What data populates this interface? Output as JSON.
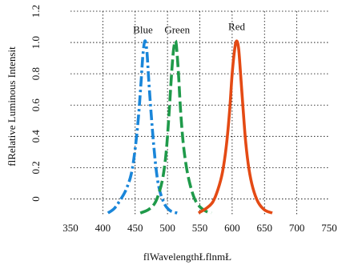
{
  "chart_data": {
    "type": "line",
    "title": "",
    "xlabel": "flWavelengthŁflnmŁ",
    "ylabel": "flRelative Luminous Intensit",
    "xlim": [
      350,
      750
    ],
    "ylim": [
      -0.1,
      1.2
    ],
    "x_ticks": [
      "350",
      "400",
      "450",
      "500",
      "550",
      "600",
      "650",
      "700",
      "750"
    ],
    "y_ticks": [
      "0",
      "0.2",
      "0.4",
      "0.6",
      "0.8",
      "1.0",
      "1.2"
    ],
    "grid": true,
    "series": [
      {
        "name": "Blue",
        "color": "#1a86d9",
        "line_style": "dash-dot",
        "x": [
          408,
          418,
          428,
          436,
          444,
          450,
          455,
          459,
          462,
          465,
          468,
          471,
          475,
          479,
          483,
          487,
          492,
          498,
          506,
          515
        ],
        "y": [
          -0.09,
          -0.06,
          0.0,
          0.06,
          0.16,
          0.32,
          0.52,
          0.74,
          0.92,
          1.01,
          0.95,
          0.76,
          0.53,
          0.33,
          0.17,
          0.07,
          0.0,
          -0.05,
          -0.08,
          -0.09
        ]
      },
      {
        "name": "Green",
        "color": "#1f9a4a",
        "line_style": "dashed",
        "x": [
          458,
          470,
          480,
          487,
          493,
          498,
          502,
          506,
          509,
          512,
          514,
          517,
          520,
          524,
          529,
          535,
          542,
          550,
          560,
          568
        ],
        "y": [
          -0.09,
          -0.07,
          -0.03,
          0.04,
          0.14,
          0.3,
          0.52,
          0.78,
          0.94,
          1.01,
          0.97,
          0.8,
          0.58,
          0.37,
          0.21,
          0.09,
          0.0,
          -0.05,
          -0.08,
          -0.09
        ]
      },
      {
        "name": "Red",
        "color": "#e44a14",
        "line_style": "solid",
        "x": [
          548,
          560,
          570,
          578,
          585,
          591,
          596,
          600,
          604,
          607,
          610,
          613,
          617,
          621,
          626,
          632,
          640,
          650,
          662
        ],
        "y": [
          -0.09,
          -0.06,
          -0.02,
          0.06,
          0.17,
          0.34,
          0.56,
          0.8,
          0.96,
          1.01,
          0.96,
          0.8,
          0.57,
          0.36,
          0.19,
          0.07,
          -0.02,
          -0.07,
          -0.09
        ]
      }
    ],
    "series_labels": [
      {
        "text": "Blue",
        "x": 462,
        "y": 1.06
      },
      {
        "text": "Green",
        "x": 515,
        "y": 1.06
      },
      {
        "text": "Red",
        "x": 607,
        "y": 1.08
      }
    ]
  }
}
